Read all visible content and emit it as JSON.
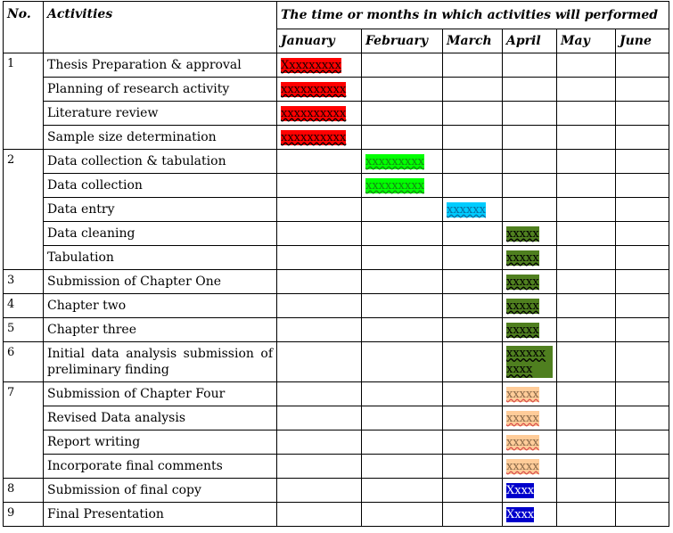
{
  "header": {
    "no": "No.",
    "activities": "Activities",
    "timeframe": "The time or months in which activities will performed",
    "months": [
      "January",
      "February",
      "March",
      "April",
      "May",
      "June"
    ]
  },
  "palette": {
    "red": "#ff0000",
    "green": "#00ff00",
    "cyan": "#00ccff",
    "olive": "#4f7f1f",
    "tan": "#ffcc99",
    "blue": "#0000cc"
  },
  "groups": [
    {
      "no": "1",
      "rows": [
        {
          "activity": "Thesis Preparation & approval",
          "month": 0,
          "mark": "Xxxxxxxxx",
          "color": "red"
        },
        {
          "activity": "Planning of  research activity",
          "month": 0,
          "mark": "xxxxxxxxxx",
          "color": "red"
        },
        {
          "activity": "Literature review",
          "month": 0,
          "mark": "xxxxxxxxxx",
          "color": "red"
        },
        {
          "activity": "Sample size determination",
          "month": 0,
          "mark": "xxxxxxxxxx",
          "color": "red"
        }
      ]
    },
    {
      "no": "2",
      "rows": [
        {
          "activity": "Data collection & tabulation",
          "month": 1,
          "mark": "xxxxxxxxx",
          "color": "green"
        },
        {
          "activity": " Data collection",
          "month": 1,
          "mark": "xxxxxxxxx",
          "color": "green"
        },
        {
          "activity": "Data entry",
          "month": 2,
          "mark": "xxxxxx",
          "color": "cyan"
        },
        {
          "activity": "Data cleaning",
          "month": 3,
          "mark": "xxxxx",
          "color": "olive"
        },
        {
          "activity": "Tabulation",
          "month": 3,
          "mark": "xxxxx",
          "color": "olive"
        }
      ]
    },
    {
      "no": "3",
      "rows": [
        {
          "activity": "Submission of  Chapter One",
          "month": 3,
          "mark": "xxxxx",
          "color": "olive"
        }
      ]
    },
    {
      "no": "4",
      "rows": [
        {
          "activity": "Chapter two",
          "month": 3,
          "mark": "xxxxx",
          "color": "olive"
        }
      ]
    },
    {
      "no": "5",
      "rows": [
        {
          "activity": "Chapter three",
          "month": 3,
          "mark": "xxxxx",
          "color": "olive"
        }
      ]
    },
    {
      "no": "6",
      "rows": [
        {
          "activity": "Initial  data  analysis  submission  of preliminary finding",
          "month": 3,
          "mark": "xxxxxx xxxx",
          "color": "olive",
          "multi": true
        }
      ]
    },
    {
      "no": "7",
      "rows": [
        {
          "activity": "Submission of  Chapter Four",
          "month": 3,
          "mark": "xxxxx",
          "color": "tan"
        },
        {
          "activity": "Revised Data analysis",
          "month": 3,
          "mark": "xxxxx",
          "color": "tan"
        },
        {
          "activity": "Report writing",
          "month": 3,
          "mark": "xxxxx",
          "color": "tan"
        },
        {
          "activity": "Incorporate final comments",
          "month": 3,
          "mark": "xxxxx",
          "color": "tan"
        }
      ]
    },
    {
      "no": "8",
      "rows": [
        {
          "activity": "Submission of  final copy",
          "month": 3,
          "mark": "Xxxx",
          "color": "blue"
        }
      ]
    },
    {
      "no": "9",
      "rows": [
        {
          "activity": "Final Presentation",
          "month": 3,
          "mark": "Xxxx",
          "color": "blue"
        }
      ]
    }
  ]
}
